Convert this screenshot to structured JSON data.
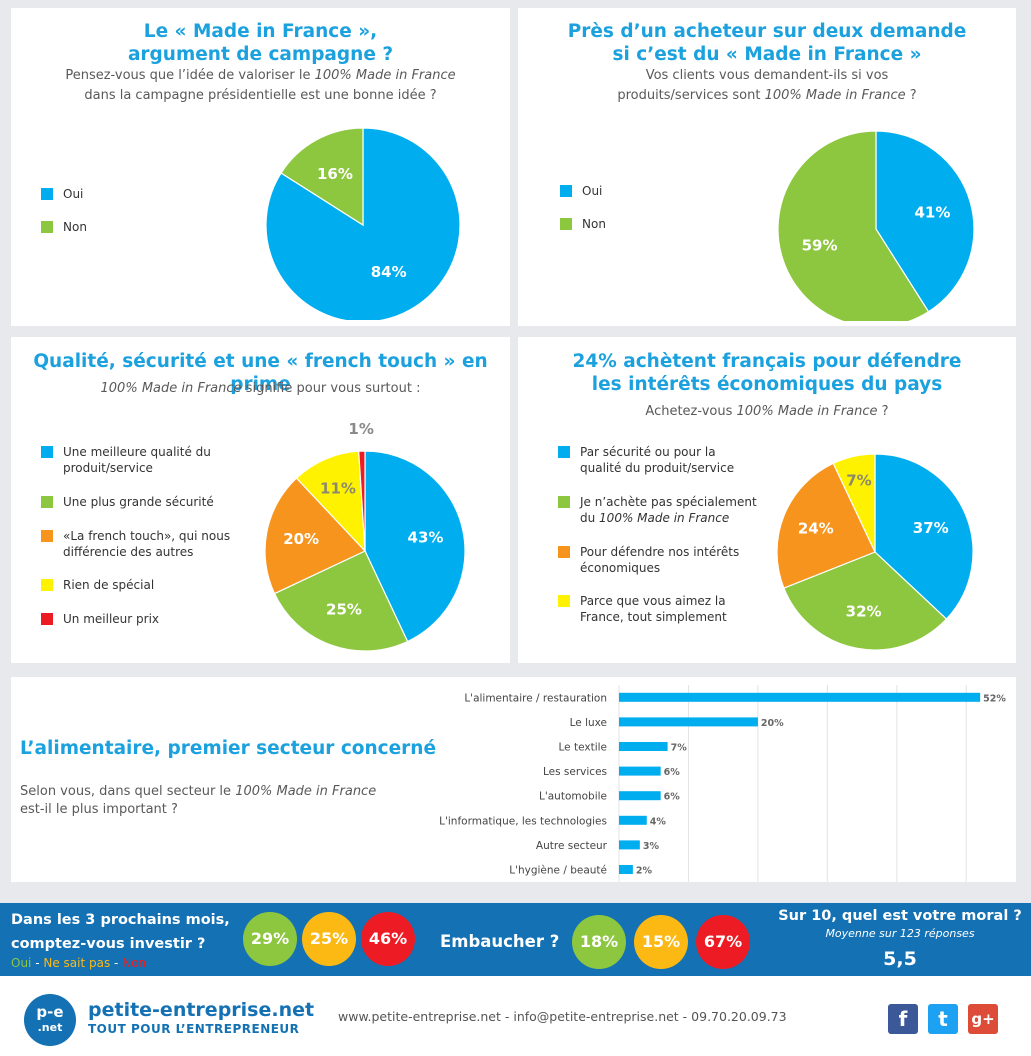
{
  "colors": {
    "blue": "#00aeef",
    "green": "#8dc63f",
    "orange": "#f7941d",
    "yellow": "#fff200",
    "red": "#ed1c24",
    "title": "#1ba1de"
  },
  "panel1": {
    "title1": "Le « Made in France »,",
    "title2": "argument de campagne ?",
    "sub1_pre": "Pensez-vous que l’idée de valoriser le ",
    "sub1_em": "100% Made in France",
    "sub2": "dans la campagne présidentielle est une bonne idée ?"
  },
  "panel2": {
    "title1": "Près d’un acheteur sur deux demande",
    "title2": "si c’est du « Made in France »",
    "sub1": "Vos clients vous demandent-ils si vos",
    "sub2_pre": "produits/services sont ",
    "sub2_em": "100% Made in France",
    "sub2_post": " ?"
  },
  "panel3": {
    "title": "Qualité, sécurité et une « french touch » en prime",
    "sub_em": "100% Made in France",
    "sub_post": " signifie pour vous surtout :"
  },
  "panel4": {
    "title1": "24% achètent français pour défendre",
    "title2": "les intérêts économiques du pays",
    "sub_pre": "Achetez-vous ",
    "sub_em": "100% Made in France",
    "sub_post": " ?"
  },
  "panel5": {
    "title": "L’alimentaire, premier secteur concerné",
    "sub1_pre": "Selon vous, dans quel secteur le ",
    "sub1_em": "100% Made in France",
    "sub2": "est-il le plus important ?"
  },
  "chart_data": [
    {
      "type": "pie",
      "title": "Le « Made in France », argument de campagne ?",
      "categories": [
        "Oui",
        "Non"
      ],
      "values": [
        84,
        16
      ],
      "value_labels": [
        "84%",
        "16%"
      ],
      "colors": [
        "#00aeef",
        "#8dc63f"
      ],
      "legend": "left"
    },
    {
      "type": "pie",
      "title": "Près d’un acheteur sur deux demande si c’est du « Made in France »",
      "categories": [
        "Oui",
        "Non"
      ],
      "values": [
        41,
        59
      ],
      "value_labels": [
        "41%",
        "59%"
      ],
      "colors": [
        "#00aeef",
        "#8dc63f"
      ],
      "legend": "left"
    },
    {
      "type": "pie",
      "title": "Qualité, sécurité et une « french touch » en prime",
      "categories": [
        "Une meilleure qualité du produit/service",
        "Une plus grande sécurité",
        "«La french touch», qui nous différencie des autres",
        "Rien de spécial",
        "Un meilleur prix"
      ],
      "values": [
        43,
        25,
        20,
        11,
        1
      ],
      "value_labels": [
        "43%",
        "25%",
        "20%",
        "11%",
        "1%"
      ],
      "colors": [
        "#00aeef",
        "#8dc63f",
        "#f7941d",
        "#fff200",
        "#ed1c24"
      ],
      "legend": "left"
    },
    {
      "type": "pie",
      "title": "24% achètent français pour défendre les intérêts économiques du pays",
      "categories": [
        "Par sécurité ou pour la qualité du produit/service",
        "Je n’achète pas spécialement du 100% Made in France",
        "Pour défendre nos intérêts économiques",
        "Parce que vous aimez la France, tout simplement"
      ],
      "values": [
        37,
        32,
        24,
        7
      ],
      "value_labels": [
        "37%",
        "32%",
        "24%",
        "7%"
      ],
      "colors": [
        "#00aeef",
        "#8dc63f",
        "#f7941d",
        "#fff200"
      ],
      "legend": "left"
    },
    {
      "type": "bar",
      "orientation": "horizontal",
      "title": "L’alimentaire, premier secteur concerné",
      "categories": [
        "L'alimentaire / restauration",
        "Le luxe",
        "Le textile",
        "Les services",
        "L'automobile",
        "L'informatique, les technologies",
        "Autre secteur",
        "L'hygiène / beauté"
      ],
      "values": [
        52,
        20,
        7,
        6,
        6,
        4,
        3,
        2
      ],
      "value_labels": [
        "52%",
        "20%",
        "7%",
        "6%",
        "6%",
        "4%",
        "3%",
        "2%"
      ],
      "xlim": [
        0,
        55
      ],
      "grid": true,
      "color": "#00aeef"
    }
  ],
  "legend4_italic": {
    "prefix": "du ",
    "em": "100% Made in France"
  },
  "bottom": {
    "invest_q1": "Dans les 3 prochains mois,",
    "invest_q2": "comptez-vous investir ?",
    "leg_oui": "Oui",
    "leg_sep": " - ",
    "leg_nsp": "Ne sait pas",
    "leg_non": "Non",
    "invest_values": [
      "29%",
      "25%",
      "46%"
    ],
    "hire_q": "Embaucher ?",
    "hire_values": [
      "18%",
      "15%",
      "67%"
    ],
    "moral_q": "Sur 10, quel est votre moral ?",
    "moral_sub": "Moyenne sur 123 réponses",
    "moral_value": "5,5",
    "circle_colors": [
      "#8dc63f",
      "#fdb913",
      "#ed1c24"
    ]
  },
  "footer": {
    "logo_top": "p-e",
    "logo_bottom": ".net",
    "brand": "petite-entreprise.net",
    "tagline": "TOUT POUR L’ENTREPRENEUR",
    "contact": "www.petite-entreprise.net - info@petite-entreprise.net - 09.70.20.09.73",
    "social": [
      "facebook-icon",
      "twitter-icon",
      "google-plus-icon"
    ],
    "social_glyphs": [
      "f",
      "t",
      "g+"
    ]
  }
}
